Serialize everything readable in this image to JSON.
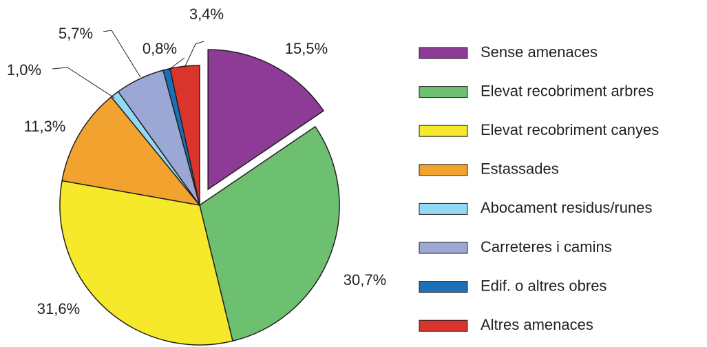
{
  "chart_data": {
    "type": "pie",
    "categories": [
      "Sense amenaces",
      "Elevat recobriment arbres",
      "Elevat recobriment canyes",
      "Estassades",
      "Abocament residus/runes",
      "Carreteres i camins",
      "Edif. o altres obres",
      "Altres amenaces"
    ],
    "values": [
      15.5,
      30.7,
      31.6,
      11.3,
      1.0,
      5.7,
      0.8,
      3.4
    ],
    "value_labels": [
      "15,5%",
      "30,7%",
      "31,6%",
      "11,3%",
      "1,0%",
      "5,7%",
      "0,8%",
      "3,4%"
    ],
    "colors": [
      "#8e3b97",
      "#6cc070",
      "#f6e82a",
      "#f2a22f",
      "#92d9f5",
      "#9ba7d5",
      "#1b70b6",
      "#d9352c"
    ],
    "exploded": [
      0
    ],
    "legend": "right"
  }
}
